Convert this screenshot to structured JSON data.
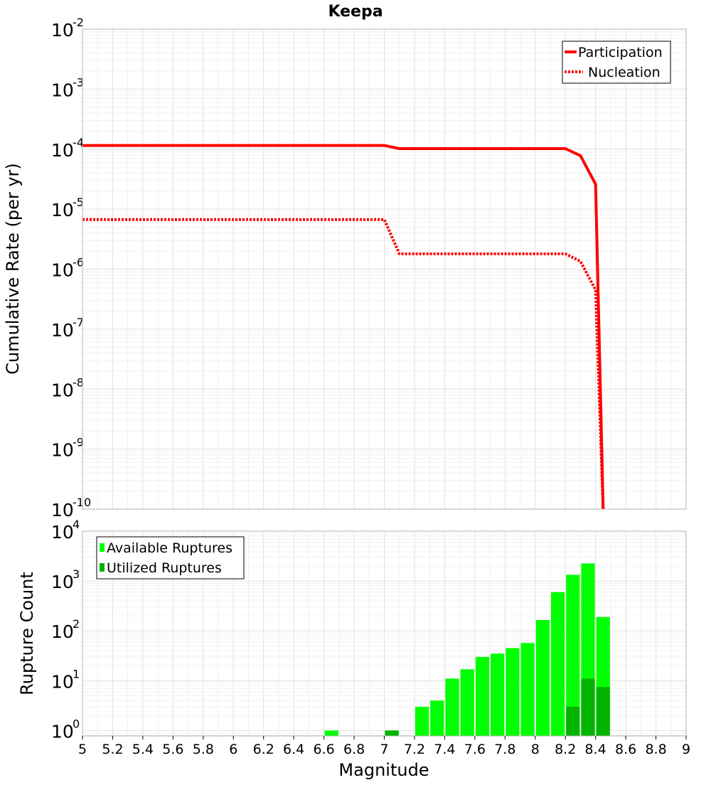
{
  "title": "Keepa",
  "chart_data": [
    {
      "type": "line",
      "name": "cumulative-rate",
      "title": "Keepa",
      "xlabel": "Magnitude",
      "ylabel": "Cumulative Rate (per yr)",
      "xlim": [
        5,
        9
      ],
      "ylim_exponent": [
        -10,
        -2
      ],
      "y_scale": "log",
      "y_tick_exponents": [
        "-10",
        "-9",
        "-8",
        "-7",
        "-6",
        "-5",
        "-4",
        "-3",
        "-2"
      ],
      "grid": true,
      "legend_position": "top-right",
      "series": [
        {
          "name": "Participation",
          "style": "solid",
          "color": "#ff0000",
          "x": [
            5.0,
            7.0,
            7.1,
            8.2,
            8.3,
            8.4,
            8.45
          ],
          "y": [
            0.000115,
            0.000115,
            0.000102,
            0.000102,
            7.8e-05,
            2.6e-05,
            1e-10
          ]
        },
        {
          "name": "Nucleation",
          "style": "dotted",
          "color": "#ff0000",
          "x": [
            5.0,
            7.0,
            7.1,
            8.2,
            8.3,
            8.4,
            8.45
          ],
          "y": [
            6.7e-06,
            6.7e-06,
            1.8e-06,
            1.8e-06,
            1.35e-06,
            4.5e-07,
            1e-10
          ]
        }
      ]
    },
    {
      "type": "bar",
      "name": "rupture-count",
      "xlabel": "Magnitude",
      "ylabel": "Rupture Count",
      "xlim": [
        5,
        9
      ],
      "ylim": [
        0.78,
        10000
      ],
      "y_scale": "log",
      "y_tick_exponents": [
        "0",
        "1",
        "2",
        "3",
        "4"
      ],
      "x_ticks": [
        "5",
        "5.2",
        "5.4",
        "5.6",
        "5.8",
        "6",
        "6.2",
        "6.4",
        "6.6",
        "6.8",
        "7",
        "7.2",
        "7.4",
        "7.6",
        "7.8",
        "8",
        "8.2",
        "8.4",
        "8.6",
        "8.8",
        "9"
      ],
      "bin_width": 0.1,
      "grid": true,
      "legend_position": "top-left",
      "series": [
        {
          "name": "Available Ruptures",
          "color": "#00ff00",
          "x": [
            6.65,
            7.05,
            7.25,
            7.35,
            7.45,
            7.55,
            7.65,
            7.75,
            7.85,
            7.95,
            8.05,
            8.15,
            8.25,
            8.35,
            8.45
          ],
          "values": [
            1,
            1,
            3,
            4,
            11,
            17,
            30,
            35,
            45,
            57,
            165,
            600,
            1330,
            2250,
            190
          ]
        },
        {
          "name": "Utilized Ruptures",
          "color": "#00b400",
          "x": [
            7.05,
            8.25,
            8.35,
            8.45
          ],
          "values": [
            1,
            3,
            11,
            7.5
          ]
        }
      ]
    }
  ]
}
